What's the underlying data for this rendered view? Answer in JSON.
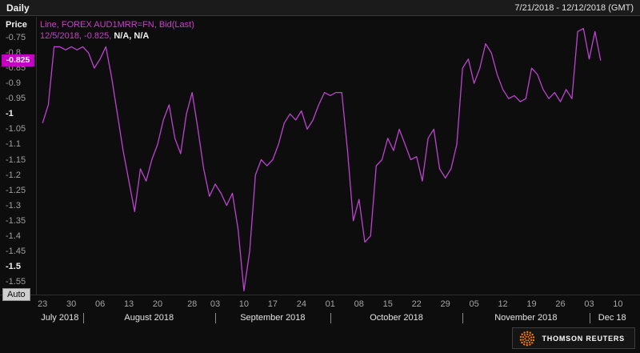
{
  "header": {
    "interval": "Daily",
    "range": "7/21/2018 - 12/12/2018 (GMT)",
    "axis_title": "Price"
  },
  "legend": {
    "series": "Line, FOREX AUD1MRR=FN, Bid(Last)",
    "point": "12/5/2018, -0.825,",
    "extra": " N/A, N/A"
  },
  "colors": {
    "accent": "#cb3ccb",
    "line": "#bd43d0",
    "badge_bg": "#c400c4",
    "logo_orange": "#f88000"
  },
  "y_axis": {
    "last_price_label": "-0.825",
    "last_price_value": -0.825,
    "ticks": [
      {
        "label": "-0.75",
        "v": -0.75,
        "major": false
      },
      {
        "label": "-0.8",
        "v": -0.8,
        "major": false
      },
      {
        "label": "-0.85",
        "v": -0.85,
        "major": false
      },
      {
        "label": "-0.9",
        "v": -0.9,
        "major": false
      },
      {
        "label": "-0.95",
        "v": -0.95,
        "major": false
      },
      {
        "label": "-1",
        "v": -1.0,
        "major": true
      },
      {
        "label": "-1.05",
        "v": -1.05,
        "major": false
      },
      {
        "label": "-1.1",
        "v": -1.1,
        "major": false
      },
      {
        "label": "-1.15",
        "v": -1.15,
        "major": false
      },
      {
        "label": "-1.2",
        "v": -1.2,
        "major": false
      },
      {
        "label": "-1.25",
        "v": -1.25,
        "major": false
      },
      {
        "label": "-1.3",
        "v": -1.3,
        "major": false
      },
      {
        "label": "-1.35",
        "v": -1.35,
        "major": false
      },
      {
        "label": "-1.4",
        "v": -1.4,
        "major": false
      },
      {
        "label": "-1.45",
        "v": -1.45,
        "major": false
      },
      {
        "label": "-1.5",
        "v": -1.5,
        "major": true
      },
      {
        "label": "-1.55",
        "v": -1.55,
        "major": false
      }
    ]
  },
  "footer": {
    "auto_label": "Auto",
    "brand": "THOMSON REUTERS"
  },
  "chart_data": {
    "type": "line",
    "title": "FOREX AUD1MRR=FN, Bid(Last), Daily",
    "xlabel": "",
    "ylabel": "Price",
    "x_range": "7/21/2018 - 12/12/2018 (GMT)",
    "ylim": [
      -0.75,
      -1.55
    ],
    "legend": "Line, FOREX AUD1MRR=FN, Bid(Last)",
    "last_point": {
      "date": "12/5/2018",
      "value": -0.825
    },
    "axis_weekdays": 104,
    "dates": [
      "7/23",
      "7/24",
      "7/25",
      "7/26",
      "7/27",
      "7/30",
      "7/31",
      "8/1",
      "8/2",
      "8/3",
      "8/6",
      "8/7",
      "8/8",
      "8/9",
      "8/10",
      "8/13",
      "8/14",
      "8/15",
      "8/16",
      "8/17",
      "8/20",
      "8/21",
      "8/22",
      "8/23",
      "8/24",
      "8/27",
      "8/28",
      "8/29",
      "8/30",
      "8/31",
      "9/3",
      "9/4",
      "9/5",
      "9/6",
      "9/7",
      "9/10",
      "9/11",
      "9/12",
      "9/13",
      "9/14",
      "9/17",
      "9/18",
      "9/19",
      "9/20",
      "9/21",
      "9/24",
      "9/25",
      "9/26",
      "9/27",
      "9/28",
      "10/1",
      "10/2",
      "10/3",
      "10/4",
      "10/5",
      "10/8",
      "10/9",
      "10/10",
      "10/11",
      "10/12",
      "10/15",
      "10/16",
      "10/17",
      "10/18",
      "10/19",
      "10/22",
      "10/23",
      "10/24",
      "10/25",
      "10/26",
      "10/29",
      "10/30",
      "10/31",
      "11/1",
      "11/2",
      "11/5",
      "11/6",
      "11/7",
      "11/8",
      "11/9",
      "11/12",
      "11/13",
      "11/14",
      "11/15",
      "11/16",
      "11/19",
      "11/20",
      "11/21",
      "11/22",
      "11/23",
      "11/26",
      "11/27",
      "11/28",
      "11/29",
      "11/30",
      "12/3",
      "12/4",
      "12/5"
    ],
    "values": [
      -1.03,
      -0.97,
      -0.78,
      -0.78,
      -0.79,
      -0.78,
      -0.79,
      -0.78,
      -0.8,
      -0.85,
      -0.82,
      -0.78,
      -0.88,
      -1.0,
      -1.12,
      -1.22,
      -1.32,
      -1.18,
      -1.22,
      -1.15,
      -1.1,
      -1.02,
      -0.97,
      -1.08,
      -1.13,
      -1.0,
      -0.93,
      -1.05,
      -1.18,
      -1.27,
      -1.23,
      -1.26,
      -1.3,
      -1.26,
      -1.38,
      -1.58,
      -1.45,
      -1.2,
      -1.15,
      -1.17,
      -1.15,
      -1.1,
      -1.03,
      -1.0,
      -1.02,
      -0.99,
      -1.05,
      -1.02,
      -0.97,
      -0.93,
      -0.94,
      -0.93,
      -0.93,
      -1.12,
      -1.35,
      -1.28,
      -1.42,
      -1.4,
      -1.17,
      -1.15,
      -1.08,
      -1.12,
      -1.05,
      -1.1,
      -1.15,
      -1.14,
      -1.22,
      -1.08,
      -1.05,
      -1.18,
      -1.21,
      -1.18,
      -1.1,
      -0.85,
      -0.82,
      -0.9,
      -0.85,
      -0.77,
      -0.8,
      -0.87,
      -0.92,
      -0.95,
      -0.94,
      -0.96,
      -0.95,
      -0.85,
      -0.87,
      -0.92,
      -0.95,
      -0.93,
      -0.96,
      -0.92,
      -0.95,
      -0.73,
      -0.72,
      -0.82,
      -0.73,
      -0.825
    ],
    "x_ticks": [
      {
        "label": "23",
        "i": 0
      },
      {
        "label": "30",
        "i": 5
      },
      {
        "label": "06",
        "i": 10
      },
      {
        "label": "13",
        "i": 15
      },
      {
        "label": "20",
        "i": 20
      },
      {
        "label": "28",
        "i": 26
      },
      {
        "label": "03",
        "i": 30
      },
      {
        "label": "10",
        "i": 35
      },
      {
        "label": "17",
        "i": 40
      },
      {
        "label": "24",
        "i": 45
      },
      {
        "label": "01",
        "i": 50
      },
      {
        "label": "08",
        "i": 55
      },
      {
        "label": "15",
        "i": 60
      },
      {
        "label": "22",
        "i": 65
      },
      {
        "label": "29",
        "i": 70
      },
      {
        "label": "05",
        "i": 75
      },
      {
        "label": "12",
        "i": 80
      },
      {
        "label": "19",
        "i": 85
      },
      {
        "label": "26",
        "i": 90
      },
      {
        "label": "03",
        "i": 95
      },
      {
        "label": "10",
        "i": 100
      }
    ],
    "months": [
      {
        "label": "July 2018",
        "start": -1,
        "end": 7
      },
      {
        "label": "August 2018",
        "start": 7,
        "end": 30
      },
      {
        "label": "September 2018",
        "start": 30,
        "end": 50
      },
      {
        "label": "October 2018",
        "start": 50,
        "end": 73
      },
      {
        "label": "November 2018",
        "start": 73,
        "end": 95
      },
      {
        "label": "Dec 18",
        "start": 95,
        "end": 103
      }
    ]
  }
}
